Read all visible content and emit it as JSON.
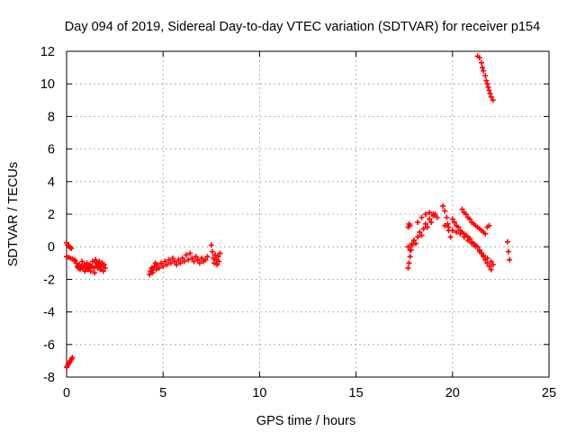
{
  "chart_data": {
    "type": "scatter",
    "title": "Day 094 of 2019, Sidereal Day-to-day VTEC variation (SDTVAR) for receiver p154",
    "xlabel": "GPS time / hours",
    "ylabel": "SDTVAR / TECUs",
    "xlim": [
      0,
      25
    ],
    "ylim": [
      -8,
      12
    ],
    "x_ticks": [
      "0",
      "5",
      "10",
      "15",
      "20",
      "25"
    ],
    "y_ticks": [
      "-8",
      "-6",
      "-4",
      "-2",
      "0",
      "2",
      "4",
      "6",
      "8",
      "10",
      "12"
    ],
    "grid": true,
    "marker": "+",
    "marker_color": "#ff0000",
    "series": [
      {
        "points": [
          [
            0.0,
            -7.4
          ],
          [
            0.05,
            -7.3
          ],
          [
            0.1,
            -7.2
          ],
          [
            0.15,
            -7.1
          ],
          [
            0.2,
            -7.0
          ],
          [
            0.25,
            -6.9
          ],
          [
            0.3,
            -6.8
          ],
          [
            0.0,
            0.25
          ],
          [
            0.05,
            0.1
          ],
          [
            0.1,
            0.05
          ],
          [
            0.15,
            0.0
          ],
          [
            0.2,
            -0.05
          ],
          [
            0.25,
            -0.1
          ],
          [
            0.0,
            -0.6
          ],
          [
            0.1,
            -0.65
          ],
          [
            0.2,
            -0.7
          ],
          [
            0.3,
            -0.75
          ],
          [
            0.4,
            -0.8
          ],
          [
            0.45,
            -0.85
          ],
          [
            0.5,
            -1.0
          ],
          [
            0.55,
            -1.2
          ],
          [
            0.6,
            -1.3
          ],
          [
            0.65,
            -1.1
          ],
          [
            0.7,
            -1.4
          ],
          [
            0.75,
            -1.2
          ],
          [
            0.8,
            -0.9
          ],
          [
            0.85,
            -1.3
          ],
          [
            0.9,
            -1.1
          ],
          [
            0.95,
            -1.5
          ],
          [
            1.0,
            -1.2
          ],
          [
            1.05,
            -1.0
          ],
          [
            1.1,
            -1.4
          ],
          [
            1.15,
            -1.3
          ],
          [
            1.2,
            -1.1
          ],
          [
            1.25,
            -1.5
          ],
          [
            1.3,
            -1.2
          ],
          [
            1.35,
            -0.9
          ],
          [
            1.4,
            -1.3
          ],
          [
            1.45,
            -1.6
          ],
          [
            1.5,
            -1.2
          ],
          [
            1.5,
            -0.8
          ],
          [
            1.55,
            -1.0
          ],
          [
            1.6,
            -1.3
          ],
          [
            1.65,
            -1.1
          ],
          [
            1.7,
            -0.9
          ],
          [
            1.75,
            -1.4
          ],
          [
            1.8,
            -1.2
          ],
          [
            1.85,
            -1.0
          ],
          [
            1.9,
            -1.5
          ],
          [
            1.95,
            -1.1
          ],
          [
            2.0,
            -1.3
          ],
          [
            4.3,
            -1.7
          ],
          [
            4.35,
            -1.5
          ],
          [
            4.4,
            -1.3
          ],
          [
            4.45,
            -1.6
          ],
          [
            4.5,
            -1.4
          ],
          [
            4.55,
            -1.2
          ],
          [
            4.6,
            -1.0
          ],
          [
            4.65,
            -1.4
          ],
          [
            4.7,
            -1.1
          ],
          [
            4.8,
            -1.3
          ],
          [
            4.9,
            -1.0
          ],
          [
            5.0,
            -1.2
          ],
          [
            5.1,
            -0.9
          ],
          [
            5.2,
            -1.1
          ],
          [
            5.3,
            -0.8
          ],
          [
            5.4,
            -1.0
          ],
          [
            5.5,
            -0.7
          ],
          [
            5.6,
            -0.9
          ],
          [
            5.7,
            -1.1
          ],
          [
            5.8,
            -0.8
          ],
          [
            5.9,
            -1.0
          ],
          [
            6.0,
            -0.7
          ],
          [
            6.1,
            -0.9
          ],
          [
            6.2,
            -0.5
          ],
          [
            6.3,
            -0.8
          ],
          [
            6.4,
            -0.4
          ],
          [
            6.5,
            -0.7
          ],
          [
            6.6,
            -0.9
          ],
          [
            6.7,
            -0.6
          ],
          [
            6.8,
            -0.8
          ],
          [
            6.9,
            -1.0
          ],
          [
            7.0,
            -0.7
          ],
          [
            7.1,
            -0.9
          ],
          [
            7.2,
            -0.8
          ],
          [
            7.3,
            -0.6
          ],
          [
            7.5,
            0.1
          ],
          [
            7.55,
            -0.3
          ],
          [
            7.6,
            -0.7
          ],
          [
            7.65,
            -1.0
          ],
          [
            7.7,
            -0.5
          ],
          [
            7.75,
            -0.8
          ],
          [
            7.8,
            -1.1
          ],
          [
            7.85,
            -0.6
          ],
          [
            7.9,
            -0.9
          ],
          [
            7.95,
            -0.4
          ],
          [
            17.7,
            -1.3
          ],
          [
            17.75,
            -1.0
          ],
          [
            17.8,
            -0.6
          ],
          [
            17.85,
            -0.2
          ],
          [
            17.9,
            0.1
          ],
          [
            17.7,
            1.2
          ],
          [
            17.75,
            1.4
          ],
          [
            17.8,
            1.3
          ],
          [
            17.7,
            0.0
          ],
          [
            17.8,
            -0.2
          ],
          [
            17.9,
            0.2
          ],
          [
            18.0,
            0.4
          ],
          [
            18.1,
            0.2
          ],
          [
            18.2,
            0.6
          ],
          [
            18.3,
            0.9
          ],
          [
            18.4,
            0.7
          ],
          [
            18.5,
            1.1
          ],
          [
            18.6,
            1.4
          ],
          [
            18.7,
            1.2
          ],
          [
            18.8,
            1.7
          ],
          [
            18.9,
            1.5
          ],
          [
            19.0,
            1.9
          ],
          [
            19.1,
            2.0
          ],
          [
            19.2,
            1.8
          ],
          [
            18.2,
            1.5
          ],
          [
            18.4,
            1.8
          ],
          [
            18.6,
            2.0
          ],
          [
            18.8,
            2.1
          ],
          [
            19.0,
            2.0
          ],
          [
            19.5,
            2.5
          ],
          [
            19.6,
            2.2
          ],
          [
            19.7,
            1.8
          ],
          [
            19.75,
            1.4
          ],
          [
            19.8,
            1.0
          ],
          [
            19.9,
            0.6
          ],
          [
            20.0,
            1.7
          ],
          [
            20.1,
            1.5
          ],
          [
            20.2,
            1.3
          ],
          [
            20.3,
            1.2
          ],
          [
            20.4,
            1.0
          ],
          [
            20.5,
            0.9
          ],
          [
            20.6,
            0.8
          ],
          [
            20.7,
            0.7
          ],
          [
            20.8,
            0.6
          ],
          [
            20.9,
            0.5
          ],
          [
            21.0,
            0.3
          ],
          [
            21.1,
            0.2
          ],
          [
            21.2,
            0.1
          ],
          [
            21.3,
            0.0
          ],
          [
            21.4,
            -0.2
          ],
          [
            21.5,
            -0.4
          ],
          [
            21.6,
            -0.6
          ],
          [
            21.7,
            -0.8
          ],
          [
            21.8,
            -1.0
          ],
          [
            21.9,
            -1.2
          ],
          [
            22.0,
            -1.4
          ],
          [
            19.6,
            1.3
          ],
          [
            19.8,
            1.2
          ],
          [
            20.0,
            1.0
          ],
          [
            20.2,
            0.9
          ],
          [
            20.4,
            0.8
          ],
          [
            20.6,
            0.6
          ],
          [
            20.8,
            0.4
          ],
          [
            21.0,
            0.2
          ],
          [
            21.2,
            0.0
          ],
          [
            21.4,
            -0.3
          ],
          [
            21.6,
            -0.5
          ],
          [
            21.8,
            -0.7
          ],
          [
            22.0,
            -0.9
          ],
          [
            22.1,
            -1.1
          ],
          [
            20.5,
            2.3
          ],
          [
            20.6,
            2.1
          ],
          [
            20.7,
            2.0
          ],
          [
            20.8,
            1.8
          ],
          [
            20.9,
            1.7
          ],
          [
            21.0,
            1.5
          ],
          [
            21.1,
            1.4
          ],
          [
            21.2,
            1.3
          ],
          [
            21.3,
            1.2
          ],
          [
            21.4,
            1.1
          ],
          [
            21.5,
            1.0
          ],
          [
            21.6,
            0.9
          ],
          [
            21.7,
            0.8
          ],
          [
            21.8,
            1.2
          ],
          [
            21.9,
            1.3
          ],
          [
            21.3,
            11.7
          ],
          [
            21.4,
            11.6
          ],
          [
            21.5,
            11.3
          ],
          [
            21.55,
            11.0
          ],
          [
            21.6,
            10.8
          ],
          [
            21.7,
            10.5
          ],
          [
            21.75,
            10.2
          ],
          [
            21.8,
            10.0
          ],
          [
            21.85,
            9.8
          ],
          [
            21.9,
            9.6
          ],
          [
            21.95,
            9.4
          ],
          [
            22.0,
            9.2
          ],
          [
            22.1,
            9.0
          ],
          [
            22.85,
            0.3
          ],
          [
            22.9,
            -0.3
          ],
          [
            22.95,
            -0.8
          ]
        ]
      }
    ]
  }
}
